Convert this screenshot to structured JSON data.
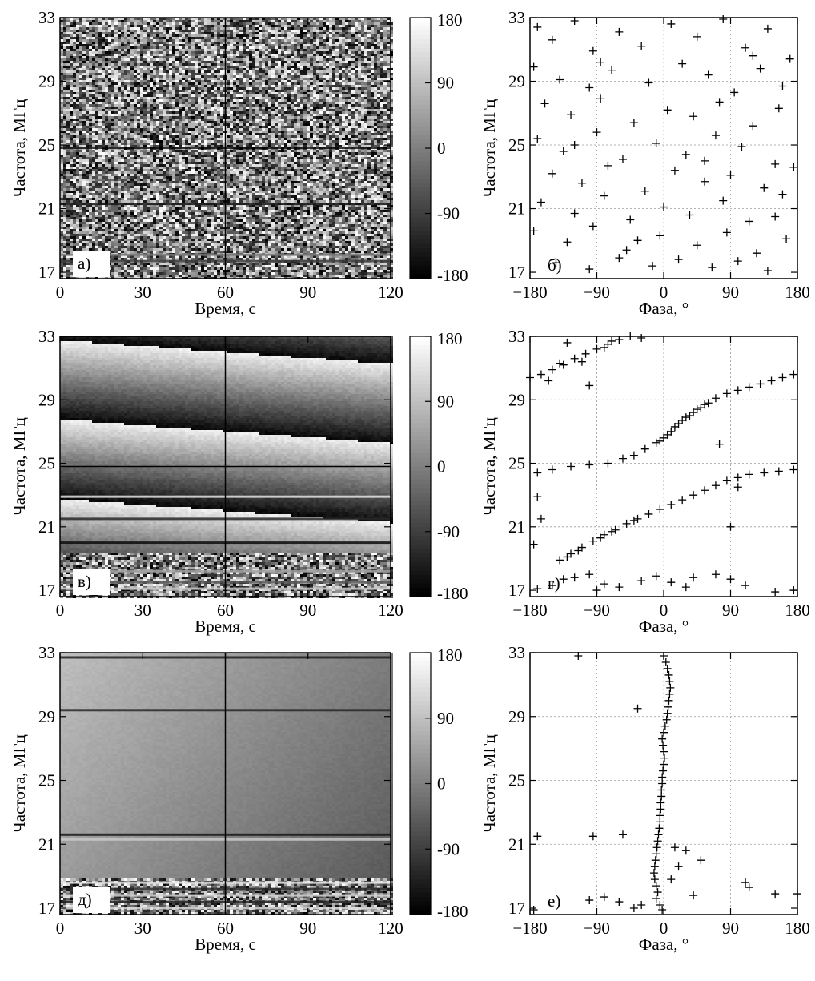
{
  "figure": {
    "colorbar_ticks": [
      "180",
      "90",
      "0",
      "-90",
      "-180"
    ],
    "colorbar_values": [
      180,
      90,
      0,
      -90,
      -180
    ]
  },
  "chart_data": [
    {
      "id": "a",
      "type": "heatmap",
      "panel_label": "а)",
      "xlabel": "Время, с",
      "ylabel": "Частота, МГц",
      "xlim": [
        0,
        120
      ],
      "ylim": [
        16.6,
        33
      ],
      "xticks": [
        0,
        30,
        60,
        90,
        120
      ],
      "yticks": [
        17,
        21,
        25,
        29,
        33
      ],
      "x_tick_labels": [
        "0",
        "30",
        "60",
        "90",
        "120"
      ],
      "y_tick_labels": [
        "17",
        "21",
        "25",
        "29",
        "33"
      ],
      "colorbar": {
        "min": -180,
        "max": 180,
        "ticks": [
          180,
          90,
          0,
          -90,
          -180
        ],
        "cmap": "gray"
      },
      "crosshair": {
        "x": 60,
        "y": 24.8
      },
      "pattern": "random phase noise",
      "stripes": [
        {
          "y": 21.3,
          "v": 20
        },
        {
          "y": 18.1,
          "v": 120
        },
        {
          "y": 17.7,
          "v": 60
        }
      ]
    },
    {
      "id": "b",
      "type": "scatter",
      "panel_label": "б)",
      "xlabel": "Фаза, °",
      "ylabel": "Частота, МГц",
      "xlim": [
        -180,
        180
      ],
      "ylim": [
        16.6,
        33
      ],
      "xticks": [
        -180,
        -90,
        0,
        90,
        180
      ],
      "yticks": [
        17,
        21,
        25,
        29,
        33
      ],
      "x_tick_labels": [
        "−180",
        "−90",
        "0",
        "90",
        "180"
      ],
      "y_tick_labels": [
        "17",
        "21",
        "25",
        "29",
        "33"
      ],
      "grid": true,
      "marker": "+",
      "points": [
        [
          -170,
          32.4
        ],
        [
          -150,
          31.6
        ],
        [
          -120,
          32.8
        ],
        [
          -95,
          30.9
        ],
        [
          -60,
          32.1
        ],
        [
          -30,
          31.2
        ],
        [
          10,
          32.6
        ],
        [
          45,
          31.8
        ],
        [
          80,
          32.9
        ],
        [
          110,
          31.1
        ],
        [
          140,
          32.3
        ],
        [
          170,
          30.4
        ],
        [
          -175,
          29.9
        ],
        [
          -140,
          29.1
        ],
        [
          -100,
          28.6
        ],
        [
          -70,
          29.7
        ],
        [
          -20,
          28.9
        ],
        [
          25,
          30.1
        ],
        [
          60,
          29.4
        ],
        [
          95,
          28.3
        ],
        [
          130,
          29.8
        ],
        [
          160,
          28.7
        ],
        [
          -160,
          27.6
        ],
        [
          -125,
          26.9
        ],
        [
          -85,
          27.9
        ],
        [
          -40,
          26.4
        ],
        [
          5,
          27.2
        ],
        [
          40,
          26.8
        ],
        [
          75,
          27.7
        ],
        [
          120,
          26.2
        ],
        [
          155,
          27.3
        ],
        [
          -170,
          25.4
        ],
        [
          -135,
          24.6
        ],
        [
          -90,
          25.8
        ],
        [
          -55,
          24.1
        ],
        [
          -10,
          25.1
        ],
        [
          30,
          24.4
        ],
        [
          70,
          25.6
        ],
        [
          105,
          24.9
        ],
        [
          150,
          23.8
        ],
        [
          -150,
          23.2
        ],
        [
          -110,
          22.6
        ],
        [
          -75,
          23.7
        ],
        [
          -25,
          22.1
        ],
        [
          15,
          23.4
        ],
        [
          55,
          22.7
        ],
        [
          90,
          23.1
        ],
        [
          135,
          22.3
        ],
        [
          175,
          23.6
        ],
        [
          -165,
          21.4
        ],
        [
          -120,
          20.7
        ],
        [
          -80,
          21.8
        ],
        [
          -45,
          20.3
        ],
        [
          0,
          21.1
        ],
        [
          35,
          20.6
        ],
        [
          80,
          21.5
        ],
        [
          115,
          20.2
        ],
        [
          160,
          21.9
        ],
        [
          -175,
          19.6
        ],
        [
          -130,
          18.9
        ],
        [
          -95,
          19.9
        ],
        [
          -50,
          18.4
        ],
        [
          -5,
          19.3
        ],
        [
          45,
          18.7
        ],
        [
          85,
          19.5
        ],
        [
          125,
          18.2
        ],
        [
          165,
          19.1
        ],
        [
          -145,
          17.6
        ],
        [
          -100,
          17.2
        ],
        [
          -60,
          17.9
        ],
        [
          -15,
          17.4
        ],
        [
          20,
          17.8
        ],
        [
          65,
          17.3
        ],
        [
          100,
          17.7
        ],
        [
          140,
          17.1
        ],
        [
          -85,
          30.2
        ],
        [
          55,
          24.0
        ],
        [
          -35,
          19.0
        ],
        [
          120,
          30.6
        ],
        [
          -120,
          25.0
        ],
        [
          150,
          20.5
        ]
      ]
    },
    {
      "id": "v",
      "type": "heatmap",
      "panel_label": "в)",
      "xlabel": "Время, с",
      "ylabel": "Частота, МГц",
      "xlim": [
        0,
        120
      ],
      "ylim": [
        16.6,
        33
      ],
      "xticks": [
        0,
        30,
        60,
        90,
        120
      ],
      "yticks": [
        17,
        21,
        25,
        29,
        33
      ],
      "x_tick_labels": [
        "0",
        "30",
        "60",
        "90",
        "120"
      ],
      "y_tick_labels": [
        "17",
        "21",
        "25",
        "29",
        "33"
      ],
      "colorbar": {
        "min": -180,
        "max": 180,
        "ticks": [
          180,
          90,
          0,
          -90,
          -180
        ],
        "cmap": "gray"
      },
      "crosshair": {
        "x": 60,
        "y": 24.8
      },
      "pattern": "phase wraps with slanted boundaries",
      "stripes": [
        {
          "y": 22.9,
          "v": 230
        },
        {
          "y": 21.5,
          "v": 40
        },
        {
          "y": 20.0,
          "v": 10
        },
        {
          "y": 18.2,
          "v": 160
        },
        {
          "y": 17.5,
          "v": 90
        },
        {
          "y": 17.1,
          "v": 200
        }
      ]
    },
    {
      "id": "g",
      "type": "scatter",
      "panel_label": "г)",
      "xlabel": "Фаза, °",
      "ylabel": "Частота, МГц",
      "xlim": [
        -180,
        180
      ],
      "ylim": [
        16.6,
        33
      ],
      "xticks": [
        -180,
        -90,
        0,
        90,
        180
      ],
      "yticks": [
        17,
        21,
        25,
        29,
        33
      ],
      "x_tick_labels": [
        "−180",
        "−90",
        "0",
        "90",
        "180"
      ],
      "y_tick_labels": [
        "17",
        "21",
        "25",
        "29",
        "33"
      ],
      "grid": true,
      "marker": "+",
      "points": [
        [
          -180,
          30.4
        ],
        [
          -165,
          30.6
        ],
        [
          -150,
          30.9
        ],
        [
          -135,
          31.2
        ],
        [
          -120,
          31.6
        ],
        [
          -105,
          31.9
        ],
        [
          -90,
          32.2
        ],
        [
          -75,
          32.5
        ],
        [
          -60,
          32.8
        ],
        [
          -45,
          33.0
        ],
        [
          -130,
          32.6
        ],
        [
          -30,
          32.9
        ],
        [
          -155,
          30.2
        ],
        [
          -110,
          31.4
        ],
        [
          -80,
          32.3
        ],
        [
          -140,
          31.3
        ],
        [
          -70,
          32.7
        ],
        [
          -100,
          29.9
        ],
        [
          -170,
          24.4
        ],
        [
          -150,
          24.6
        ],
        [
          -125,
          24.8
        ],
        [
          -100,
          24.9
        ],
        [
          -75,
          25.0
        ],
        [
          -55,
          25.3
        ],
        [
          -40,
          25.5
        ],
        [
          -25,
          25.9
        ],
        [
          -10,
          26.3
        ],
        [
          0,
          26.6
        ],
        [
          10,
          27.0
        ],
        [
          20,
          27.5
        ],
        [
          30,
          27.9
        ],
        [
          40,
          28.2
        ],
        [
          50,
          28.5
        ],
        [
          60,
          28.8
        ],
        [
          70,
          29.1
        ],
        [
          85,
          29.4
        ],
        [
          100,
          29.6
        ],
        [
          115,
          29.8
        ],
        [
          130,
          30.0
        ],
        [
          145,
          30.2
        ],
        [
          160,
          30.4
        ],
        [
          175,
          30.6
        ],
        [
          -5,
          26.4
        ],
        [
          5,
          26.8
        ],
        [
          15,
          27.3
        ],
        [
          25,
          27.7
        ],
        [
          35,
          28.0
        ],
        [
          45,
          28.4
        ],
        [
          55,
          28.7
        ],
        [
          75,
          26.2
        ],
        [
          -170,
          22.9
        ],
        [
          -165,
          21.5
        ],
        [
          -175,
          19.9
        ],
        [
          -140,
          18.9
        ],
        [
          -125,
          19.3
        ],
        [
          -110,
          19.7
        ],
        [
          -95,
          20.1
        ],
        [
          -80,
          20.5
        ],
        [
          -65,
          20.8
        ],
        [
          -50,
          21.2
        ],
        [
          -35,
          21.5
        ],
        [
          -20,
          21.8
        ],
        [
          -5,
          22.1
        ],
        [
          10,
          22.4
        ],
        [
          25,
          22.7
        ],
        [
          40,
          23.0
        ],
        [
          55,
          23.3
        ],
        [
          70,
          23.6
        ],
        [
          85,
          23.9
        ],
        [
          100,
          24.1
        ],
        [
          115,
          24.3
        ],
        [
          135,
          24.4
        ],
        [
          155,
          24.5
        ],
        [
          175,
          24.6
        ],
        [
          -130,
          19.1
        ],
        [
          -115,
          19.5
        ],
        [
          -85,
          20.3
        ],
        [
          -70,
          20.7
        ],
        [
          -40,
          21.4
        ],
        [
          90,
          21.0
        ],
        [
          100,
          23.5
        ],
        [
          -170,
          17.1
        ],
        [
          -150,
          17.3
        ],
        [
          -120,
          17.8
        ],
        [
          -100,
          18.0
        ],
        [
          -80,
          17.4
        ],
        [
          -60,
          17.2
        ],
        [
          -30,
          17.6
        ],
        [
          -10,
          17.9
        ],
        [
          10,
          17.5
        ],
        [
          30,
          17.2
        ],
        [
          70,
          18.0
        ],
        [
          90,
          17.7
        ],
        [
          110,
          17.3
        ],
        [
          150,
          16.9
        ],
        [
          175,
          17.0
        ],
        [
          -135,
          17.7
        ],
        [
          -90,
          17.0
        ],
        [
          40,
          17.8
        ]
      ]
    },
    {
      "id": "d",
      "type": "heatmap",
      "panel_label": "д)",
      "xlabel": "Время, с",
      "ylabel": "Частота, МГц",
      "xlim": [
        0,
        120
      ],
      "ylim": [
        16.6,
        33
      ],
      "xticks": [
        0,
        30,
        60,
        90,
        120
      ],
      "yticks": [
        17,
        21,
        25,
        29,
        33
      ],
      "x_tick_labels": [
        "0",
        "30",
        "60",
        "90",
        "120"
      ],
      "y_tick_labels": [
        "17",
        "21",
        "25",
        "29",
        "33"
      ],
      "colorbar": {
        "min": -180,
        "max": 180,
        "ticks": [
          180,
          90,
          0,
          -90,
          -180
        ],
        "cmap": "gray"
      },
      "crosshair": {
        "x": 60,
        "y": 24.8
      },
      "pattern": "smooth phase with horizontal striping",
      "stripes": [
        {
          "y": 32.7,
          "v": 30
        },
        {
          "y": 29.4,
          "v": 40
        },
        {
          "y": 21.6,
          "v": 25
        },
        {
          "y": 21.3,
          "v": 200
        },
        {
          "y": 18.6,
          "v": 230
        },
        {
          "y": 18.2,
          "v": 40
        },
        {
          "y": 17.8,
          "v": 210
        },
        {
          "y": 17.4,
          "v": 30
        },
        {
          "y": 17.0,
          "v": 220
        }
      ]
    },
    {
      "id": "e",
      "type": "scatter",
      "panel_label": "е)",
      "xlabel": "Фаза, °",
      "ylabel": "Частота, МГц",
      "xlim": [
        -180,
        180
      ],
      "ylim": [
        16.6,
        33
      ],
      "xticks": [
        -180,
        -90,
        0,
        90,
        180
      ],
      "yticks": [
        17,
        21,
        25,
        29,
        33
      ],
      "x_tick_labels": [
        "−180",
        "−90",
        "0",
        "90",
        "180"
      ],
      "y_tick_labels": [
        "17",
        "21",
        "25",
        "29",
        "33"
      ],
      "grid": true,
      "marker": "+",
      "points": [
        [
          0,
          32.8
        ],
        [
          3,
          32.4
        ],
        [
          5,
          32.0
        ],
        [
          7,
          31.6
        ],
        [
          8,
          31.2
        ],
        [
          9,
          30.8
        ],
        [
          8,
          30.4
        ],
        [
          7,
          30.0
        ],
        [
          6,
          29.6
        ],
        [
          5,
          29.2
        ],
        [
          4,
          28.8
        ],
        [
          2,
          28.4
        ],
        [
          0,
          28.0
        ],
        [
          -2,
          27.6
        ],
        [
          -1,
          27.2
        ],
        [
          0,
          26.8
        ],
        [
          1,
          26.4
        ],
        [
          0,
          26.0
        ],
        [
          -1,
          25.6
        ],
        [
          -2,
          25.2
        ],
        [
          -2,
          24.8
        ],
        [
          -3,
          24.4
        ],
        [
          -3,
          24.0
        ],
        [
          -4,
          23.6
        ],
        [
          -4,
          23.2
        ],
        [
          -5,
          22.8
        ],
        [
          -5,
          22.4
        ],
        [
          -6,
          22.0
        ],
        [
          -7,
          21.6
        ],
        [
          -8,
          21.2
        ],
        [
          -9,
          20.8
        ],
        [
          -10,
          20.4
        ],
        [
          -11,
          20.0
        ],
        [
          -12,
          19.6
        ],
        [
          -13,
          19.2
        ],
        [
          -12,
          18.8
        ],
        [
          -10,
          18.4
        ],
        [
          -8,
          18.0
        ],
        [
          -10,
          17.6
        ],
        [
          -5,
          17.2
        ],
        [
          -2,
          16.9
        ],
        [
          -115,
          32.8
        ],
        [
          -35,
          29.5
        ],
        [
          -170,
          21.5
        ],
        [
          -95,
          21.5
        ],
        [
          -55,
          21.6
        ],
        [
          15,
          20.8
        ],
        [
          30,
          20.6
        ],
        [
          50,
          20.0
        ],
        [
          20,
          19.6
        ],
        [
          10,
          18.8
        ],
        [
          40,
          17.8
        ],
        [
          110,
          18.6
        ],
        [
          115,
          18.3
        ],
        [
          150,
          17.9
        ],
        [
          180,
          17.9
        ],
        [
          -80,
          17.7
        ],
        [
          -60,
          17.4
        ],
        [
          -30,
          17.2
        ],
        [
          -40,
          17.0
        ],
        [
          -175,
          16.9
        ],
        [
          -100,
          17.5
        ]
      ]
    }
  ]
}
